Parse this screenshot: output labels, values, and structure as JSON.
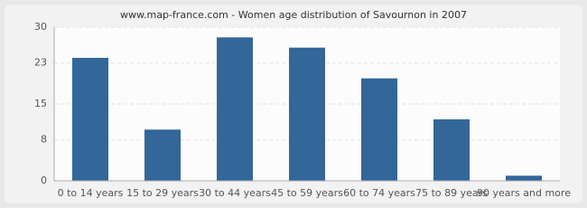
{
  "chart_data": {
    "type": "bar",
    "title": "www.map-france.com - Women age distribution of Savournon in 2007",
    "categories": [
      "0 to 14 years",
      "15 to 29 years",
      "30 to 44 years",
      "45 to 59 years",
      "60 to 74 years",
      "75 to 89 years",
      "90 years and more"
    ],
    "values": [
      24,
      10,
      28,
      26,
      20,
      12,
      1
    ],
    "color": "#336699",
    "ylim": [
      0,
      30
    ],
    "yticks": [
      0,
      8,
      15,
      23,
      30
    ],
    "grid": true
  }
}
